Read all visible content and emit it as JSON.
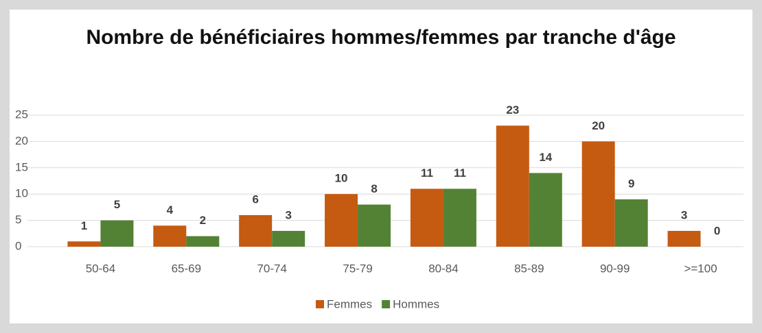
{
  "chart_data": {
    "type": "bar",
    "title": "Nombre de bénéficiaires hommes/femmes par tranche d'âge",
    "categories": [
      "50-64",
      "65-69",
      "70-74",
      "75-79",
      "80-84",
      "85-89",
      "90-99",
      ">=100"
    ],
    "series": [
      {
        "name": "Femmes",
        "color": "#c55a11",
        "values": [
          1,
          4,
          6,
          10,
          11,
          23,
          20,
          3
        ]
      },
      {
        "name": "Hommes",
        "color": "#548235",
        "values": [
          5,
          2,
          3,
          8,
          11,
          14,
          9,
          0
        ]
      }
    ],
    "ylim": [
      0,
      25
    ],
    "yticks": [
      0,
      5,
      10,
      15,
      20,
      25
    ],
    "grid": true,
    "legend": "bottom"
  }
}
